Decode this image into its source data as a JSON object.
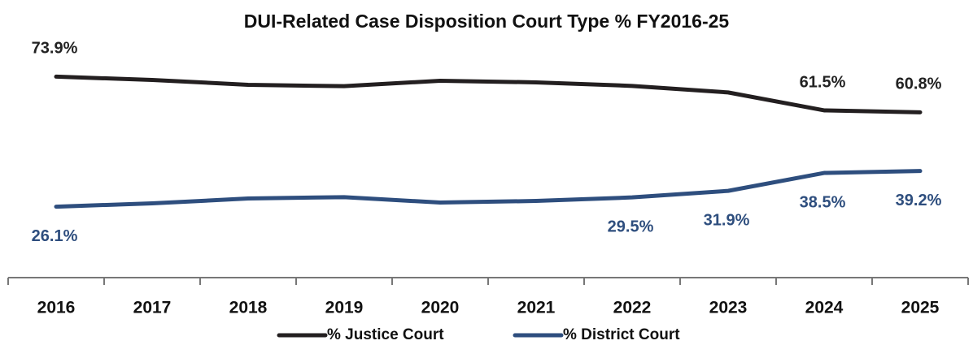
{
  "chart_data": {
    "type": "line",
    "title": "DUI-Related Case Disposition Court Type % FY2016-25",
    "categories": [
      "2016",
      "2017",
      "2018",
      "2019",
      "2020",
      "2021",
      "2022",
      "2023",
      "2024",
      "2025"
    ],
    "ylim": [
      0,
      100
    ],
    "series": [
      {
        "name": "% Justice Court",
        "color": "#231f20",
        "values": [
          73.9,
          72.7,
          70.9,
          70.4,
          72.4,
          71.8,
          70.5,
          68.1,
          61.5,
          60.8
        ],
        "value_labels": [
          "73.9%",
          null,
          null,
          null,
          null,
          null,
          null,
          null,
          "61.5%",
          "60.8%"
        ]
      },
      {
        "name": "% District Court",
        "color": "#2e4e7e",
        "values": [
          26.1,
          27.3,
          29.1,
          29.6,
          27.6,
          28.2,
          29.5,
          31.9,
          38.5,
          39.2
        ],
        "value_labels": [
          "26.1%",
          null,
          null,
          null,
          null,
          null,
          "29.5%",
          "31.9%",
          "38.5%",
          "39.2%"
        ]
      }
    ]
  }
}
